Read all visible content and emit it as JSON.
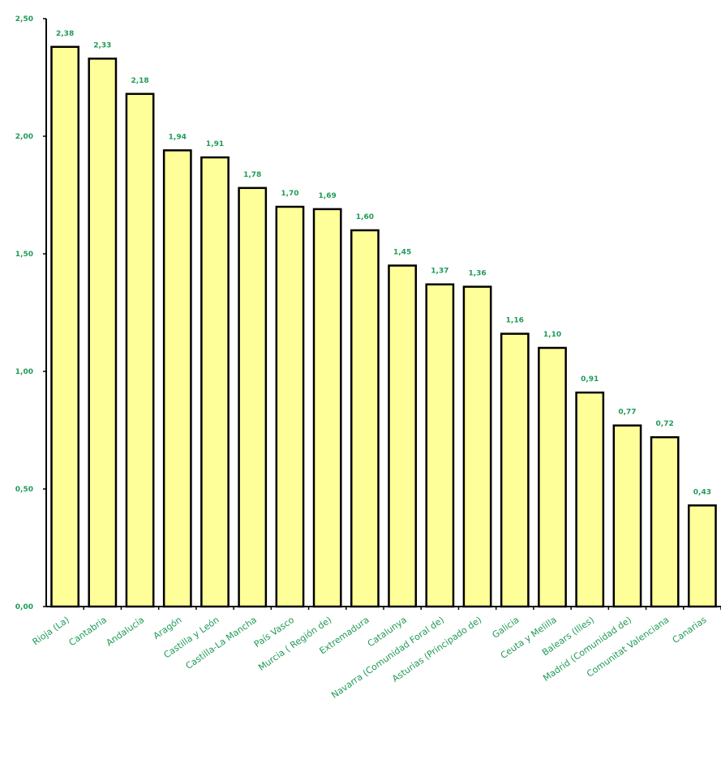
{
  "chart_data": {
    "type": "bar",
    "categories": [
      "Rioja (La)",
      "Cantabria",
      "Andalucía",
      "Aragón",
      "Castilla y León",
      "Castilla-La Mancha",
      "País Vasco",
      "Murcia ( Región de)",
      "Extremadura",
      "Catalunya",
      "Navarra (Comunidad Foral de)",
      "Asturias (Principado de)",
      "Galicia",
      "Ceuta y Melilla",
      "Balears (Illes)",
      "Madrid (Comunidad de)",
      "Comunitat Valenciana",
      "Canarias"
    ],
    "values": [
      2.38,
      2.33,
      2.18,
      1.94,
      1.91,
      1.78,
      1.7,
      1.69,
      1.6,
      1.45,
      1.37,
      1.36,
      1.16,
      1.1,
      0.91,
      0.77,
      0.72,
      0.43
    ],
    "value_labels": [
      "2,38",
      "2,33",
      "2,18",
      "1,94",
      "1,91",
      "1,78",
      "1,70",
      "1,69",
      "1,60",
      "1,45",
      "1,37",
      "1,36",
      "1,16",
      "1,10",
      "0,91",
      "0,77",
      "0,72",
      "0,43"
    ],
    "ylim": [
      0,
      2.5
    ],
    "yticks": [
      0,
      0.5,
      1.0,
      1.5,
      2.0,
      2.5
    ],
    "ytick_labels": [
      "0,00",
      "0,50",
      "1,00",
      "1,50",
      "2,00",
      "2,50"
    ],
    "grid": false,
    "legend": "none",
    "colors": {
      "bar_fill": "#ffff99",
      "bar_stroke": "#000000",
      "text": "#1f9a57",
      "axis": "#000000"
    }
  }
}
